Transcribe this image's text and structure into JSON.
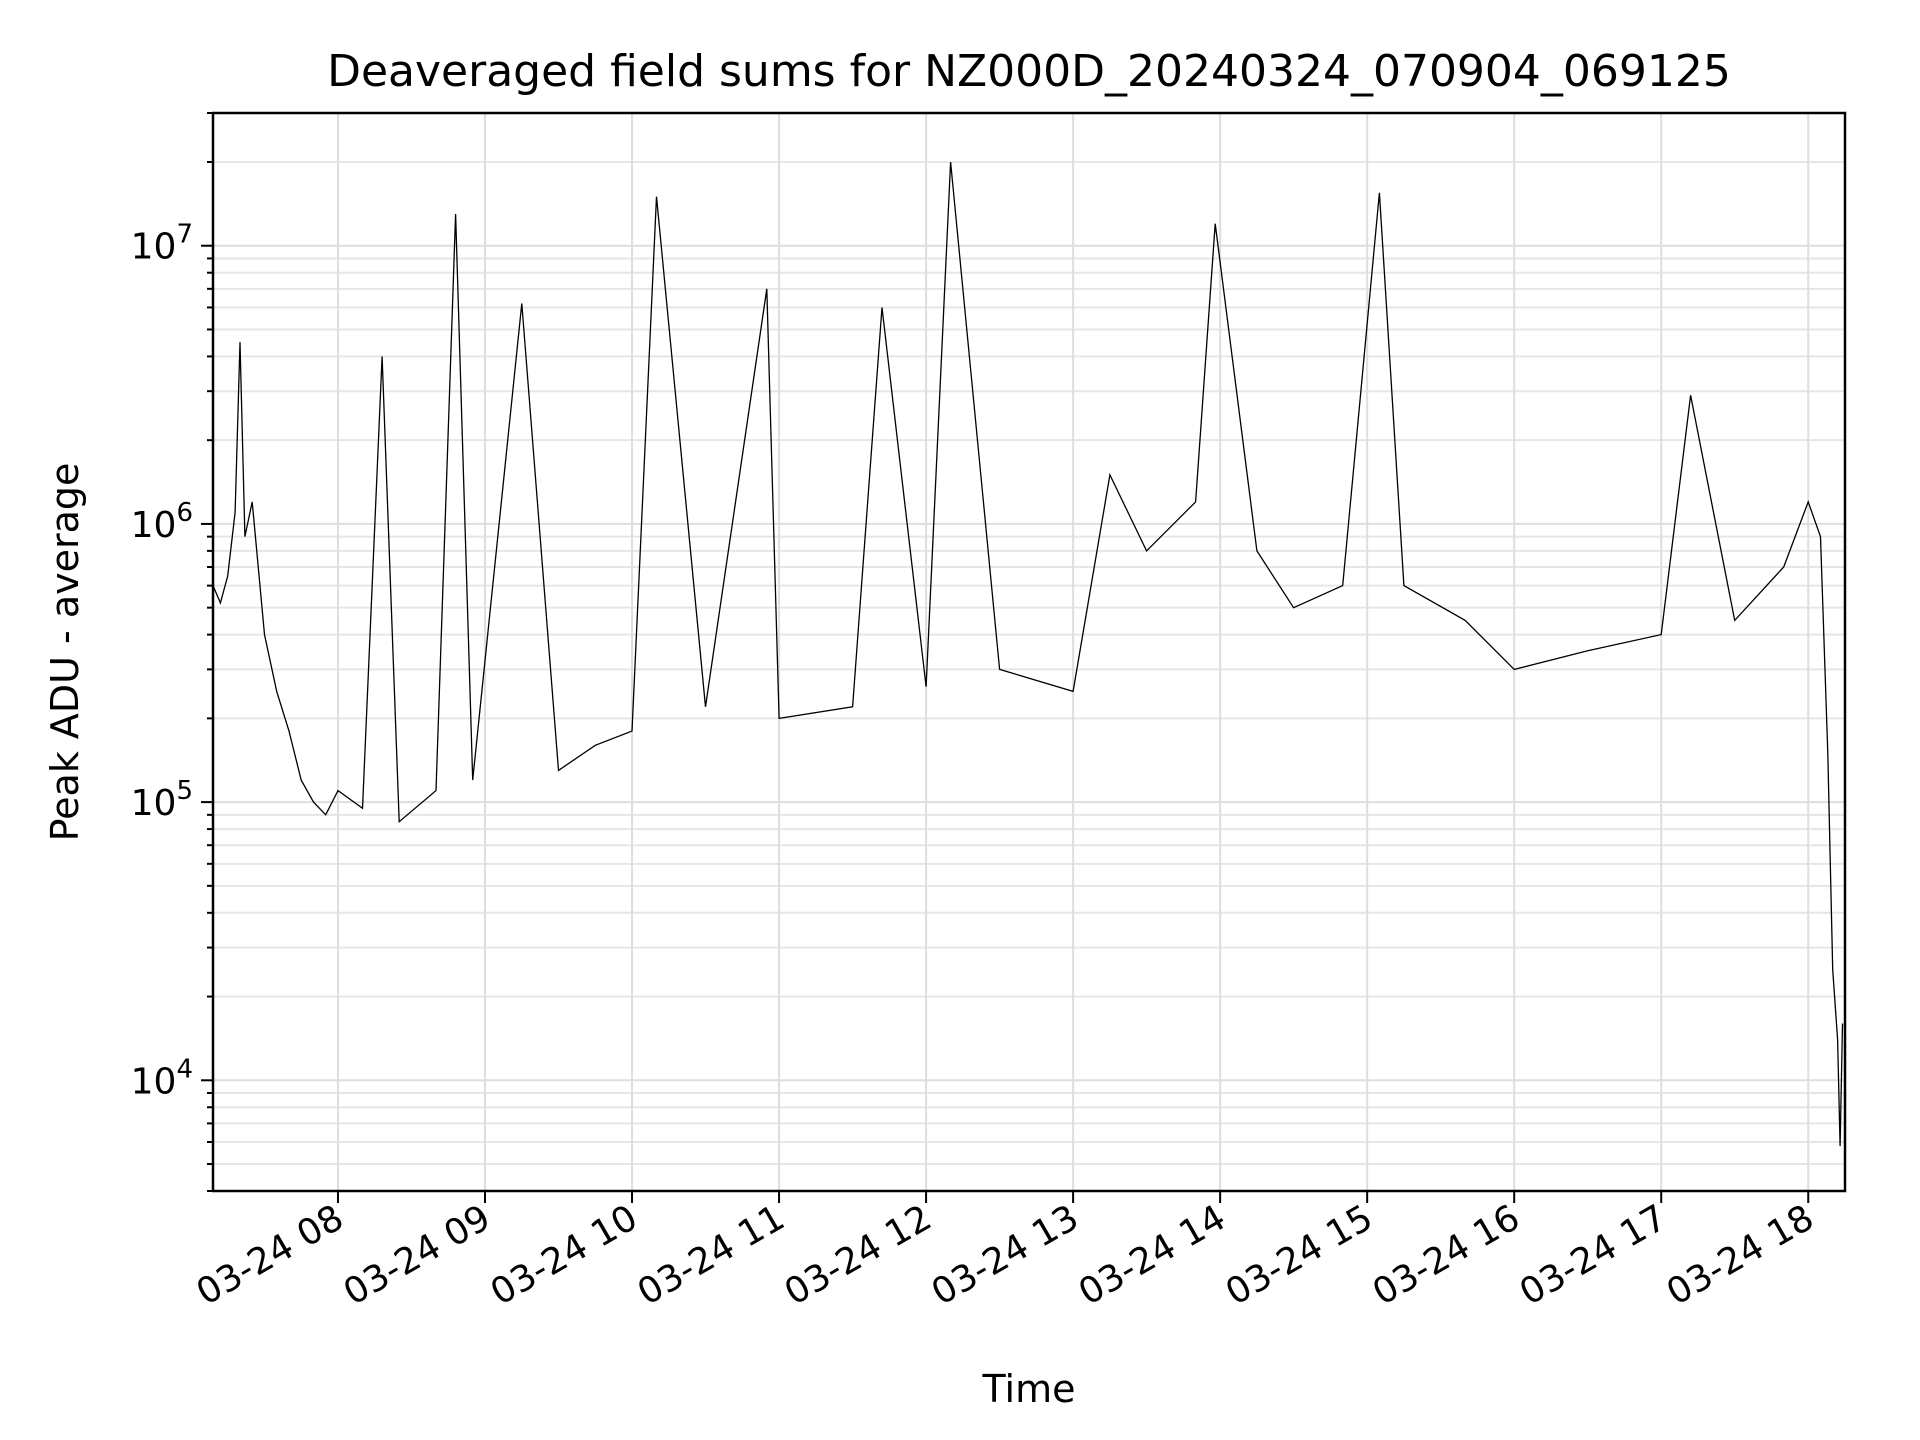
{
  "chart_data": {
    "type": "line",
    "title": "Deaveraged field sums for NZ000D_20240324_070904_069125",
    "xlabel": "Time",
    "ylabel": "Peak ADU - average",
    "yscale": "log",
    "ylim": [
      4000,
      30000000
    ],
    "xlim": [
      "2024-03-24 07:09",
      "2024-03-24 18:15"
    ],
    "grid": true,
    "x_ticks": [
      {
        "t": "2024-03-24 08:00",
        "label": "03-24 08"
      },
      {
        "t": "2024-03-24 09:00",
        "label": "03-24 09"
      },
      {
        "t": "2024-03-24 10:00",
        "label": "03-24 10"
      },
      {
        "t": "2024-03-24 11:00",
        "label": "03-24 11"
      },
      {
        "t": "2024-03-24 12:00",
        "label": "03-24 12"
      },
      {
        "t": "2024-03-24 13:00",
        "label": "03-24 13"
      },
      {
        "t": "2024-03-24 14:00",
        "label": "03-24 14"
      },
      {
        "t": "2024-03-24 15:00",
        "label": "03-24 15"
      },
      {
        "t": "2024-03-24 16:00",
        "label": "03-24 16"
      },
      {
        "t": "2024-03-24 17:00",
        "label": "03-24 17"
      },
      {
        "t": "2024-03-24 18:00",
        "label": "03-24 18"
      }
    ],
    "y_ticks": [
      {
        "value": 10000,
        "base": "10",
        "exp": "4"
      },
      {
        "value": 100000,
        "base": "10",
        "exp": "5"
      },
      {
        "value": 1000000,
        "base": "10",
        "exp": "6"
      },
      {
        "value": 10000000,
        "base": "10",
        "exp": "7"
      }
    ],
    "series": [
      {
        "color": "#000000",
        "points": [
          [
            "2024-03-24 07:09",
            600000
          ],
          [
            "2024-03-24 07:12",
            520000
          ],
          [
            "2024-03-24 07:15",
            650000
          ],
          [
            "2024-03-24 07:18",
            1100000
          ],
          [
            "2024-03-24 07:20",
            4500000
          ],
          [
            "2024-03-24 07:22",
            900000
          ],
          [
            "2024-03-24 07:25",
            1200000
          ],
          [
            "2024-03-24 07:30",
            400000
          ],
          [
            "2024-03-24 07:35",
            250000
          ],
          [
            "2024-03-24 07:40",
            180000
          ],
          [
            "2024-03-24 07:45",
            120000
          ],
          [
            "2024-03-24 07:50",
            100000
          ],
          [
            "2024-03-24 07:55",
            90000
          ],
          [
            "2024-03-24 08:00",
            110000
          ],
          [
            "2024-03-24 08:10",
            95000
          ],
          [
            "2024-03-24 08:18",
            4000000
          ],
          [
            "2024-03-24 08:25",
            85000
          ],
          [
            "2024-03-24 08:40",
            110000
          ],
          [
            "2024-03-24 08:48",
            13000000
          ],
          [
            "2024-03-24 08:55",
            120000
          ],
          [
            "2024-03-24 09:15",
            6200000
          ],
          [
            "2024-03-24 09:30",
            130000
          ],
          [
            "2024-03-24 09:45",
            160000
          ],
          [
            "2024-03-24 10:00",
            180000
          ],
          [
            "2024-03-24 10:10",
            15000000
          ],
          [
            "2024-03-24 10:30",
            220000
          ],
          [
            "2024-03-24 10:55",
            7000000
          ],
          [
            "2024-03-24 11:00",
            200000
          ],
          [
            "2024-03-24 11:30",
            220000
          ],
          [
            "2024-03-24 11:42",
            6000000
          ],
          [
            "2024-03-24 12:00",
            260000
          ],
          [
            "2024-03-24 12:10",
            20000000
          ],
          [
            "2024-03-24 12:30",
            300000
          ],
          [
            "2024-03-24 13:00",
            250000
          ],
          [
            "2024-03-24 13:15",
            1500000
          ],
          [
            "2024-03-24 13:30",
            800000
          ],
          [
            "2024-03-24 13:50",
            1200000
          ],
          [
            "2024-03-24 13:58",
            12000000
          ],
          [
            "2024-03-24 14:15",
            800000
          ],
          [
            "2024-03-24 14:30",
            500000
          ],
          [
            "2024-03-24 14:50",
            600000
          ],
          [
            "2024-03-24 15:05",
            15500000
          ],
          [
            "2024-03-24 15:15",
            600000
          ],
          [
            "2024-03-24 15:40",
            450000
          ],
          [
            "2024-03-24 16:00",
            300000
          ],
          [
            "2024-03-24 16:30",
            350000
          ],
          [
            "2024-03-24 17:00",
            400000
          ],
          [
            "2024-03-24 17:12",
            2900000
          ],
          [
            "2024-03-24 17:30",
            450000
          ],
          [
            "2024-03-24 17:50",
            700000
          ],
          [
            "2024-03-24 18:00",
            1200000
          ],
          [
            "2024-03-24 18:05",
            900000
          ],
          [
            "2024-03-24 18:08",
            150000
          ],
          [
            "2024-03-24 18:10",
            25000
          ],
          [
            "2024-03-24 18:12",
            14000
          ],
          [
            "2024-03-24 18:13",
            5800
          ],
          [
            "2024-03-24 18:14",
            16000
          ]
        ]
      }
    ]
  }
}
